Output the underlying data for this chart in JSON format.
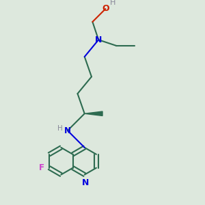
{
  "bg_color": "#dde8dd",
  "bond_color": "#2d6b50",
  "N_color": "#0000dd",
  "O_color": "#cc2200",
  "F_color": "#cc44cc",
  "H_color": "#888899",
  "line_width": 1.5,
  "figsize": [
    3.0,
    3.0
  ],
  "dpi": 100,
  "xlim": [
    0,
    10
  ],
  "ylim": [
    0,
    10
  ]
}
